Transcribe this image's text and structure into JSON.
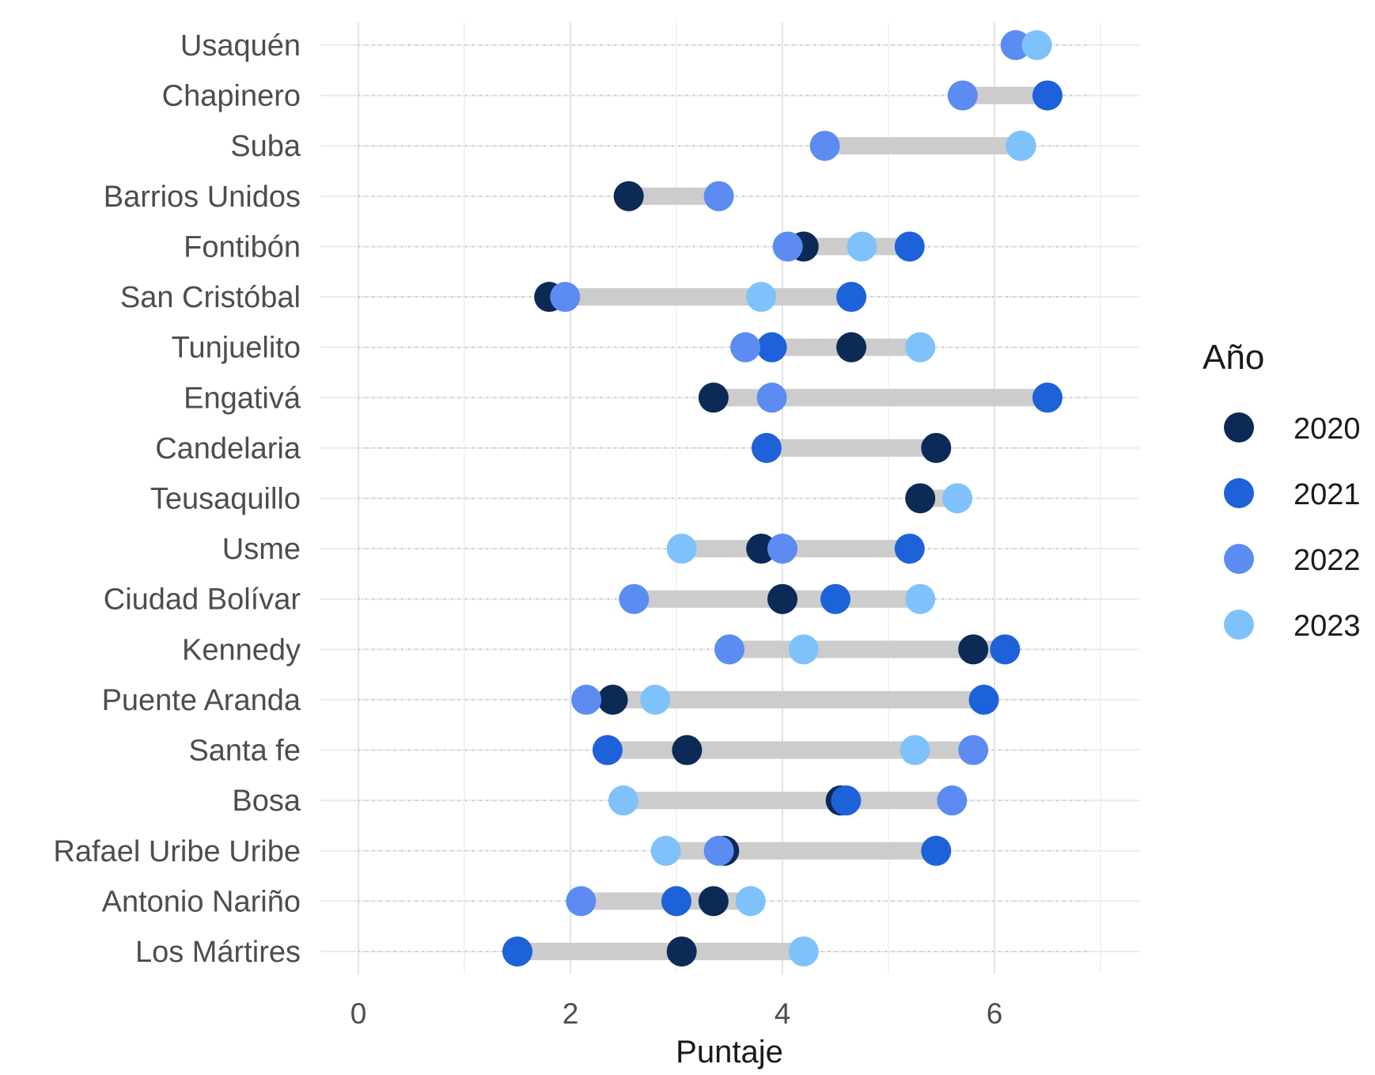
{
  "chart_data": {
    "type": "dumbbell",
    "xlabel": "Puntaje",
    "ylabel": "",
    "xlim": [
      -0.35,
      7.35
    ],
    "xticks": [
      0,
      2,
      4,
      6
    ],
    "grid": true,
    "legend": {
      "title": "Año",
      "position": "right"
    },
    "categories": [
      "Usaquén",
      "Chapinero",
      "Suba",
      "Barrios Unidos",
      "Fontibón",
      "San Cristóbal",
      "Tunjuelito",
      "Engativá",
      "Candelaria",
      "Teusaquillo",
      "Usme",
      "Ciudad Bolívar",
      "Kennedy",
      "Puente Aranda",
      "Santa fe",
      "Bosa",
      "Rafael Uribe Uribe",
      "Antonio Nariño",
      "Los Mártires"
    ],
    "series": [
      {
        "name": "2020",
        "color": "#0b2a55",
        "values": [
          null,
          null,
          null,
          2.55,
          4.2,
          1.8,
          4.65,
          3.35,
          5.45,
          5.3,
          3.8,
          4.0,
          5.8,
          2.4,
          3.1,
          4.55,
          3.45,
          3.35,
          3.05
        ]
      },
      {
        "name": "2021",
        "color": "#1d62d9",
        "values": [
          null,
          6.5,
          6.25,
          null,
          5.2,
          4.65,
          3.9,
          6.5,
          3.85,
          null,
          5.2,
          4.5,
          6.1,
          5.9,
          2.35,
          4.6,
          5.45,
          3.0,
          1.5
        ]
      },
      {
        "name": "2022",
        "color": "#5c8cf2",
        "values": [
          6.2,
          5.7,
          4.4,
          3.4,
          4.05,
          1.95,
          3.65,
          3.9,
          null,
          null,
          4.0,
          2.6,
          3.5,
          2.15,
          5.8,
          5.6,
          3.4,
          2.1,
          null
        ]
      },
      {
        "name": "2023",
        "color": "#7fc2fb",
        "values": [
          6.4,
          null,
          6.25,
          null,
          4.75,
          3.8,
          5.3,
          null,
          null,
          5.65,
          3.05,
          5.3,
          4.2,
          2.8,
          5.25,
          2.5,
          2.9,
          3.7,
          4.2
        ]
      }
    ]
  }
}
